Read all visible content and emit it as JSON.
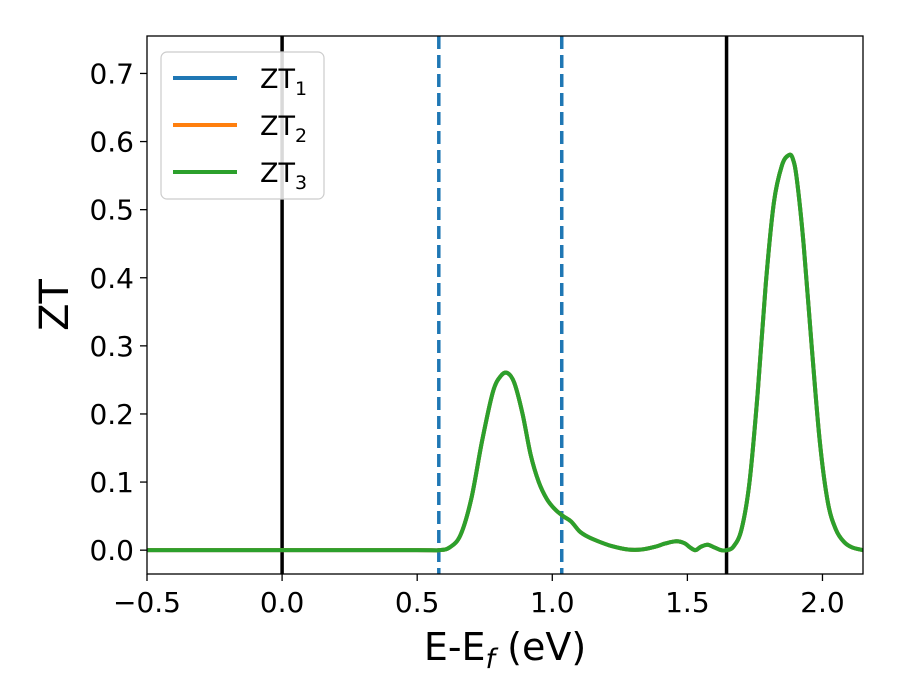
{
  "chart_data": {
    "type": "line",
    "xlabel": "E-E",
    "xlabel_sub": "f",
    "xlabel_unit": " (eV)",
    "ylabel": "ZT",
    "xlim": [
      -0.5,
      2.15
    ],
    "ylim": [
      -0.035,
      0.755
    ],
    "x_ticks": [
      -0.5,
      0.0,
      0.5,
      1.0,
      1.5,
      2.0
    ],
    "x_tick_labels": [
      "−0.5",
      "0.0",
      "0.5",
      "1.0",
      "1.5",
      "2.0"
    ],
    "y_ticks": [
      0.0,
      0.1,
      0.2,
      0.3,
      0.4,
      0.5,
      0.6,
      0.7
    ],
    "y_tick_labels": [
      "0.0",
      "0.1",
      "0.2",
      "0.3",
      "0.4",
      "0.5",
      "0.6",
      "0.7"
    ],
    "grid": false,
    "legend_position": "top-left",
    "vlines": [
      {
        "x": 0.0,
        "style": "solid",
        "color": "#000000"
      },
      {
        "x": 1.645,
        "style": "solid",
        "color": "#000000"
      },
      {
        "x": 0.58,
        "style": "dashed",
        "color": "#1f77b4"
      },
      {
        "x": 1.035,
        "style": "dashed",
        "color": "#1f77b4"
      }
    ],
    "series": [
      {
        "name": "ZT",
        "sub": "1",
        "color": "#1f77b4",
        "x": [
          -0.5,
          0.0,
          0.5,
          0.58,
          0.62,
          0.66,
          0.7,
          0.74,
          0.78,
          0.81,
          0.835,
          0.86,
          0.89,
          0.92,
          0.95,
          0.98,
          1.01,
          1.04,
          1.07,
          1.1,
          1.13,
          1.17,
          1.22,
          1.28,
          1.33,
          1.38,
          1.42,
          1.46,
          1.49,
          1.51,
          1.53,
          1.55,
          1.575,
          1.6,
          1.625,
          1.645,
          1.67,
          1.7,
          1.73,
          1.76,
          1.79,
          1.82,
          1.85,
          1.875,
          1.89,
          1.905,
          1.93,
          1.96,
          1.99,
          2.02,
          2.05,
          2.08,
          2.11,
          2.15
        ],
        "y": [
          0.0,
          0.0,
          0.0,
          0.0,
          0.004,
          0.022,
          0.075,
          0.16,
          0.232,
          0.256,
          0.26,
          0.245,
          0.2,
          0.14,
          0.1,
          0.075,
          0.06,
          0.05,
          0.042,
          0.028,
          0.02,
          0.013,
          0.006,
          0.001,
          0.001,
          0.005,
          0.01,
          0.013,
          0.01,
          0.004,
          0.0,
          0.005,
          0.008,
          0.004,
          0.0,
          0.0,
          0.005,
          0.03,
          0.1,
          0.23,
          0.39,
          0.51,
          0.565,
          0.58,
          0.575,
          0.545,
          0.45,
          0.3,
          0.16,
          0.07,
          0.03,
          0.012,
          0.004,
          0.0
        ]
      },
      {
        "name": "ZT",
        "sub": "2",
        "color": "#ff7f0e",
        "x": [
          -0.5,
          0.0,
          0.5,
          0.58,
          0.62,
          0.66,
          0.7,
          0.74,
          0.78,
          0.81,
          0.835,
          0.86,
          0.89,
          0.92,
          0.95,
          0.98,
          1.01,
          1.04,
          1.07,
          1.1,
          1.13,
          1.17,
          1.22,
          1.28,
          1.33,
          1.38,
          1.42,
          1.46,
          1.49,
          1.51,
          1.53,
          1.55,
          1.575,
          1.6,
          1.625,
          1.645,
          1.67,
          1.7,
          1.73,
          1.76,
          1.79,
          1.82,
          1.85,
          1.875,
          1.89,
          1.905,
          1.93,
          1.96,
          1.99,
          2.02,
          2.05,
          2.08,
          2.11,
          2.15
        ],
        "y": [
          0.0,
          0.0,
          0.0,
          0.0,
          0.004,
          0.022,
          0.075,
          0.16,
          0.232,
          0.256,
          0.26,
          0.245,
          0.2,
          0.14,
          0.1,
          0.075,
          0.06,
          0.05,
          0.042,
          0.028,
          0.02,
          0.013,
          0.006,
          0.001,
          0.001,
          0.005,
          0.01,
          0.013,
          0.01,
          0.004,
          0.0,
          0.005,
          0.008,
          0.004,
          0.0,
          0.0,
          0.005,
          0.03,
          0.1,
          0.23,
          0.39,
          0.51,
          0.565,
          0.58,
          0.575,
          0.545,
          0.45,
          0.3,
          0.16,
          0.07,
          0.03,
          0.012,
          0.004,
          0.0
        ]
      },
      {
        "name": "ZT",
        "sub": "3",
        "color": "#2ca02c",
        "x": [
          -0.5,
          0.0,
          0.5,
          0.58,
          0.62,
          0.66,
          0.7,
          0.74,
          0.78,
          0.81,
          0.835,
          0.86,
          0.89,
          0.92,
          0.95,
          0.98,
          1.01,
          1.04,
          1.07,
          1.1,
          1.13,
          1.17,
          1.22,
          1.28,
          1.33,
          1.38,
          1.42,
          1.46,
          1.49,
          1.51,
          1.53,
          1.55,
          1.575,
          1.6,
          1.625,
          1.645,
          1.67,
          1.7,
          1.73,
          1.76,
          1.79,
          1.82,
          1.85,
          1.875,
          1.89,
          1.905,
          1.93,
          1.96,
          1.99,
          2.02,
          2.05,
          2.08,
          2.11,
          2.15
        ],
        "y": [
          0.0,
          0.0,
          0.0,
          0.0,
          0.004,
          0.022,
          0.075,
          0.16,
          0.232,
          0.256,
          0.26,
          0.245,
          0.2,
          0.14,
          0.1,
          0.075,
          0.06,
          0.05,
          0.042,
          0.028,
          0.02,
          0.013,
          0.006,
          0.001,
          0.001,
          0.005,
          0.01,
          0.013,
          0.01,
          0.004,
          0.0,
          0.005,
          0.008,
          0.004,
          0.0,
          0.0,
          0.005,
          0.03,
          0.1,
          0.23,
          0.39,
          0.51,
          0.565,
          0.58,
          0.575,
          0.545,
          0.45,
          0.3,
          0.16,
          0.07,
          0.03,
          0.012,
          0.004,
          0.0
        ]
      }
    ]
  }
}
